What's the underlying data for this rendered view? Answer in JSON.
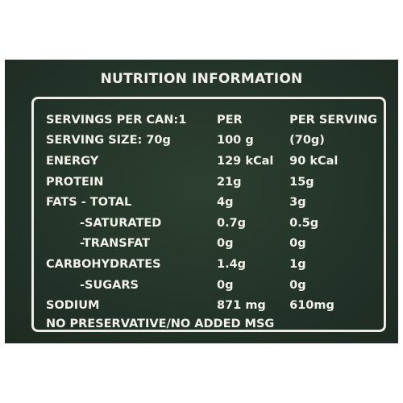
{
  "title": "NUTRITION INFORMATION",
  "header_row": [
    "SERVINGS PER CAN:1",
    "PER",
    "PER SERVING"
  ],
  "rows": [
    {
      "label": "SERVING SIZE: 70g",
      "per100": "100 g",
      "per_serving": "(70g)",
      "indent": false
    },
    {
      "label": "ENERGY",
      "per100": "129 kCal",
      "per_serving": "90 kCal",
      "indent": false
    },
    {
      "label": "PROTEIN",
      "per100": "21g",
      "per_serving": "15g",
      "indent": false
    },
    {
      "label": "FATS - TOTAL",
      "per100": "4g",
      "per_serving": "3g",
      "indent": false
    },
    {
      "label": "-SATURATED",
      "per100": "0.7g",
      "per_serving": "0.5g",
      "indent": true
    },
    {
      "label": "-TRANSFAT",
      "per100": "0g",
      "per_serving": "0g",
      "indent": true
    },
    {
      "label": "CARBOHYDRATES",
      "per100": "1.4g",
      "per_serving": "1g",
      "indent": false
    },
    {
      "label": "-SUGARS",
      "per100": "0g",
      "per_serving": "0g",
      "indent": true
    },
    {
      "label": "SODIUM",
      "per100": "871 mg",
      "per_serving": "610mg",
      "indent": false
    }
  ],
  "footer": "NO PRESERVATIVE/NO ADDED MSG",
  "colors": {
    "panel": "#243428",
    "text": "#f1f1ea",
    "border": "#ecece4"
  }
}
